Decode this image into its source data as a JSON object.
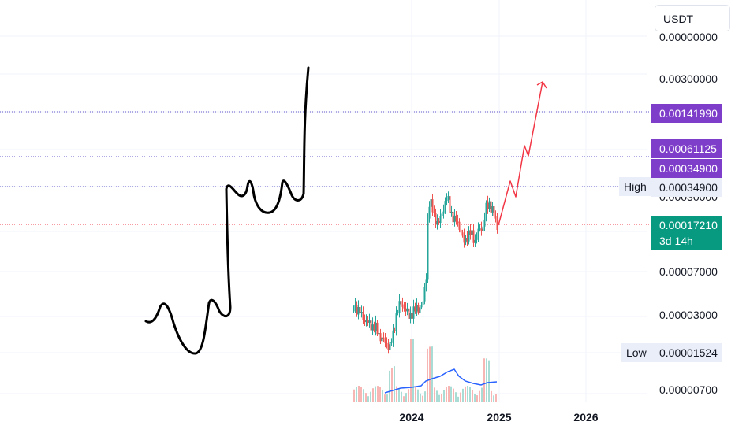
{
  "header": {
    "currency": "USDT"
  },
  "chart_data": {
    "type": "candlestick",
    "price_scale": "log",
    "y_tick_labels": [
      "0.00300000",
      "0.00007000",
      "0.00003000",
      "0.00000700"
    ],
    "y_ticks": [
      0.003,
      7e-05,
      3e-05,
      7e-06
    ],
    "x_tick_labels": [
      "2024",
      "2025",
      "2026"
    ],
    "horizontal_levels": [
      {
        "value": 0.0014199,
        "label": "0.00141990",
        "style": "dotted",
        "color": "#5b54c9"
      },
      {
        "value": 0.00061125,
        "label": "0.00061125",
        "style": "dotted",
        "color": "#5b54c9"
      },
      {
        "value": 0.000349,
        "label": "0.00034900",
        "style": "dotted",
        "color": "#5b54c9"
      }
    ],
    "high": {
      "label": "High",
      "value": "0.00034900"
    },
    "low": {
      "label": "Low",
      "value": "0.00001524"
    },
    "current_price": {
      "value": "0.00017210",
      "countdown": "3d 14h",
      "color": "#089981"
    },
    "projection_color": "#f23645",
    "volume_ma_color": "#2962ff",
    "up_color": "#26a69a",
    "down_color": "#ef5350",
    "drawing_color": "#000000",
    "grid": true
  }
}
